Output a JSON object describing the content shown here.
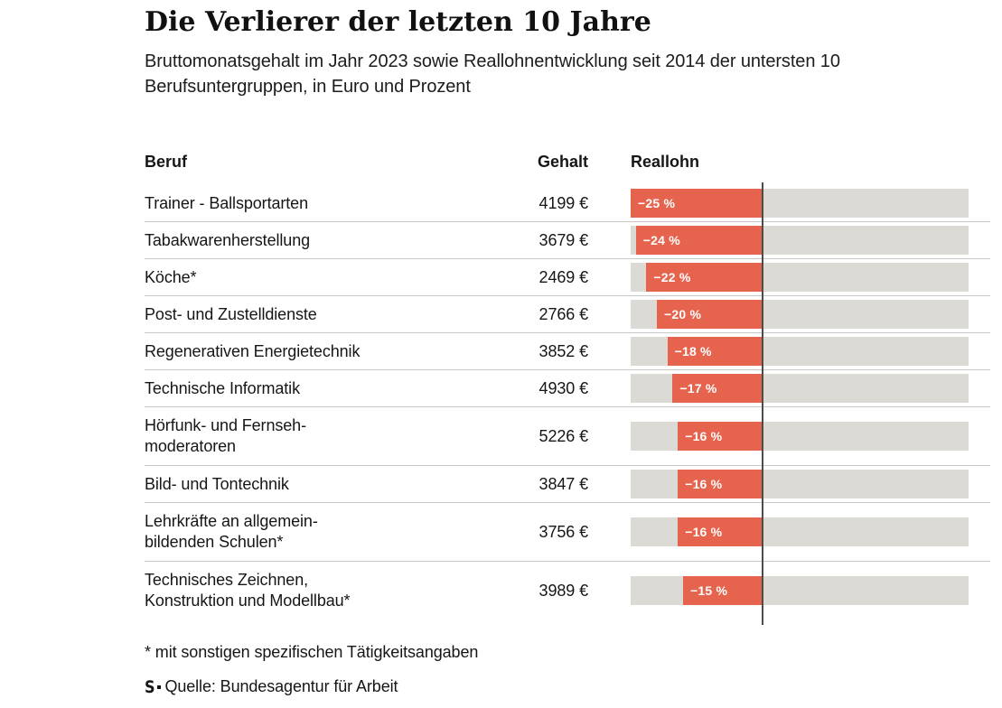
{
  "title": "Die Verlierer der letzten 10 Jahre",
  "subtitle": "Bruttomonatsgehalt im Jahr 2023 sowie Reallohnentwicklung seit 2014 der untersten 10 Berufsuntergruppen, in Euro und Prozent",
  "columns": {
    "beruf": "Beruf",
    "gehalt": "Gehalt",
    "reallohn": "Reallohn"
  },
  "rows": [
    {
      "label_lines": [
        "Trainer - Ballsportarten"
      ],
      "gehalt": "4199 €",
      "pct_label": "−25 %",
      "pct": 25
    },
    {
      "label_lines": [
        "Tabakwarenherstellung"
      ],
      "gehalt": "3679 €",
      "pct_label": "−24 %",
      "pct": 24
    },
    {
      "label_lines": [
        "Köche*"
      ],
      "gehalt": "2469 €",
      "pct_label": "−22 %",
      "pct": 22
    },
    {
      "label_lines": [
        "Post- und Zustelldienste"
      ],
      "gehalt": "2766 €",
      "pct_label": "−20 %",
      "pct": 20
    },
    {
      "label_lines": [
        "Regenerativen Energietechnik"
      ],
      "gehalt": "3852 €",
      "pct_label": "−18 %",
      "pct": 18
    },
    {
      "label_lines": [
        "Technische Informatik"
      ],
      "gehalt": "4930 €",
      "pct_label": "−17 %",
      "pct": 17
    },
    {
      "label_lines": [
        "Hörfunk- und Fernseh-",
        "moderatoren"
      ],
      "gehalt": "5226 €",
      "pct_label": "−16 %",
      "pct": 16
    },
    {
      "label_lines": [
        "Bild- und Tontechnik"
      ],
      "gehalt": "3847 €",
      "pct_label": "−16 %",
      "pct": 16
    },
    {
      "label_lines": [
        "Lehrkräfte an allgemein-",
        "bildenden Schulen*"
      ],
      "gehalt": "3756 €",
      "pct_label": "−16 %",
      "pct": 16
    },
    {
      "label_lines": [
        "Technisches Zeichnen,",
        "Konstruktion und Modellbau*"
      ],
      "gehalt": "3989 €",
      "pct_label": "−15 %",
      "pct": 15
    }
  ],
  "footnote": "* mit sonstigen spezifischen Tätigkeitsangaben",
  "source_logo": "S",
  "source": "Quelle: Bundesagentur für Arbeit",
  "colors": {
    "bar_negative": "#e6634d",
    "bar_background": "#dbdad5",
    "zero_line": "#4c4c4c",
    "row_separator": "#c8c8c6"
  },
  "chart_data": {
    "type": "bar",
    "orientation": "horizontal",
    "title": "Die Verlierer der letzten 10 Jahre",
    "subtitle": "Bruttomonatsgehalt im Jahr 2023 sowie Reallohnentwicklung seit 2014 der untersten 10 Berufsuntergruppen, in Euro und Prozent",
    "categories": [
      "Trainer - Ballsportarten",
      "Tabakwarenherstellung",
      "Köche*",
      "Post- und Zustelldienste",
      "Regenerativen Energietechnik",
      "Technische Informatik",
      "Hörfunk- und Fernsehmoderatoren",
      "Bild- und Tontechnik",
      "Lehrkräfte an allgemeinbildenden Schulen*",
      "Technisches Zeichnen, Konstruktion und Modellbau*"
    ],
    "series": [
      {
        "name": "Gehalt (Bruttomonatsgehalt 2023, Euro)",
        "values": [
          4199,
          3679,
          2469,
          2766,
          3852,
          4930,
          5226,
          3847,
          3756,
          3989
        ]
      },
      {
        "name": "Reallohn (Entwicklung seit 2014, Prozent)",
        "values": [
          -25,
          -24,
          -22,
          -20,
          -18,
          -17,
          -16,
          -16,
          -16,
          -15
        ]
      }
    ],
    "xlabel": "",
    "ylabel": "",
    "xlim_percent": [
      -25,
      39
    ],
    "grid": false,
    "zero_line": true,
    "legend_position": "column-headers",
    "value_labels": "inside-bar-left"
  }
}
